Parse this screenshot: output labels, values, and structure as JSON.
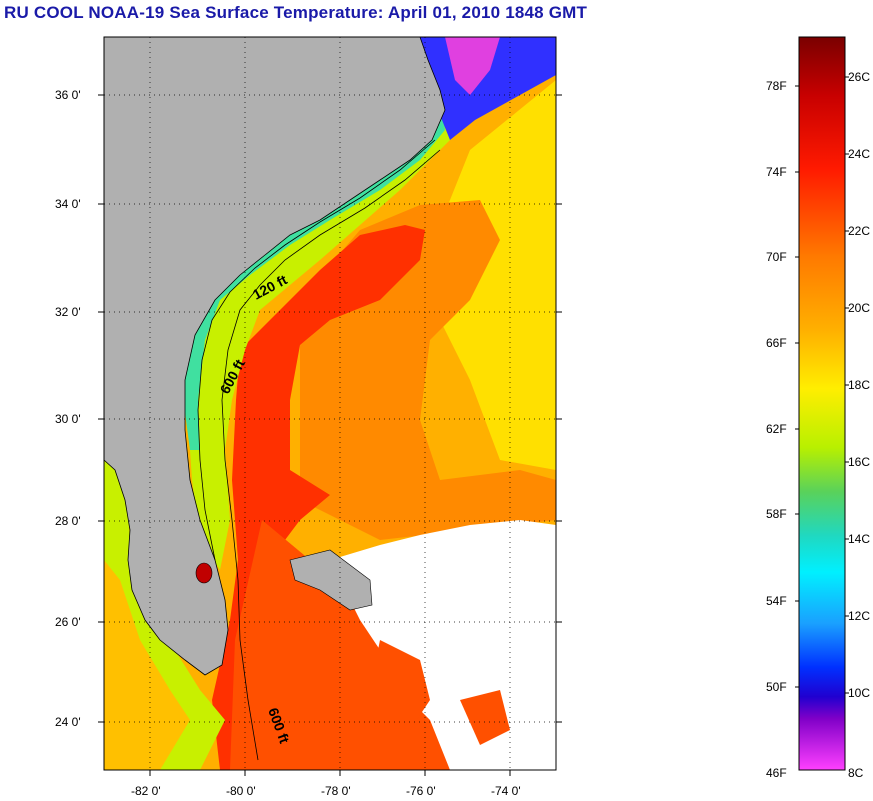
{
  "title": "RU COOL  NOAA-19  Sea Surface Temperature:  April 01, 2010 1848 GMT",
  "map": {
    "lat_labels": [
      "36 0'",
      "34 0'",
      "32 0'",
      "30 0'",
      "28 0'",
      "26 0'",
      "24 0'"
    ],
    "lon_labels": [
      "-82 0'",
      "-80 0'",
      "-78 0'",
      "-76 0'",
      "-74 0'"
    ],
    "contour_labels": [
      "120 ft",
      "600 ft",
      "600 ft"
    ],
    "colors": {
      "land": "#b0b0b0",
      "cloud": "#ffffff"
    }
  },
  "colorbar": {
    "fahrenheit_labels": [
      "78F",
      "74F",
      "70F",
      "66F",
      "62F",
      "58F",
      "54F",
      "50F",
      "46F"
    ],
    "celsius_labels": [
      "26C",
      "24C",
      "22C",
      "20C",
      "18C",
      "16C",
      "14C",
      "12C",
      "10C",
      "8C"
    ]
  }
}
